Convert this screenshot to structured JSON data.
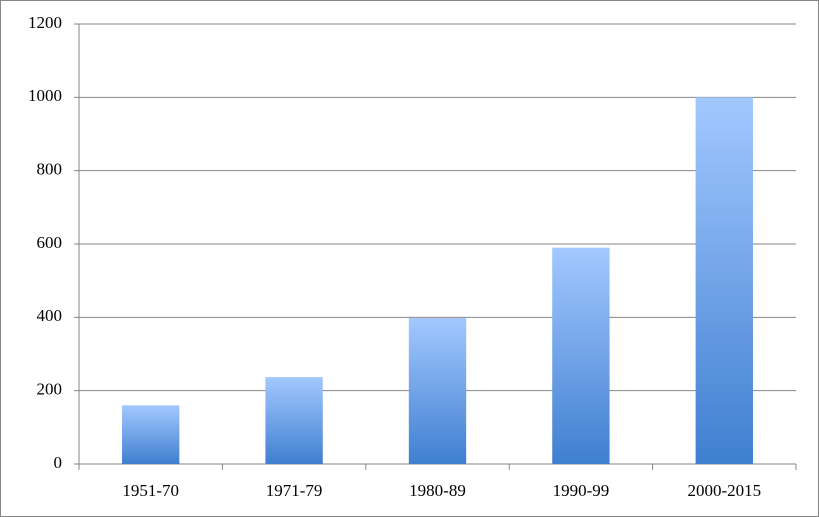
{
  "chart_data": {
    "type": "bar",
    "categories": [
      "1951-70",
      "1971-79",
      "1980-89",
      "1990-99",
      "2000-2015"
    ],
    "values": [
      160,
      237,
      398,
      590,
      1000
    ],
    "gradient": [
      "#a3c8ff",
      "#3f7fd0"
    ],
    "ylim": [
      0,
      1200
    ],
    "yticks": [
      0,
      200,
      400,
      600,
      800,
      1000,
      1200
    ],
    "grid": true
  }
}
